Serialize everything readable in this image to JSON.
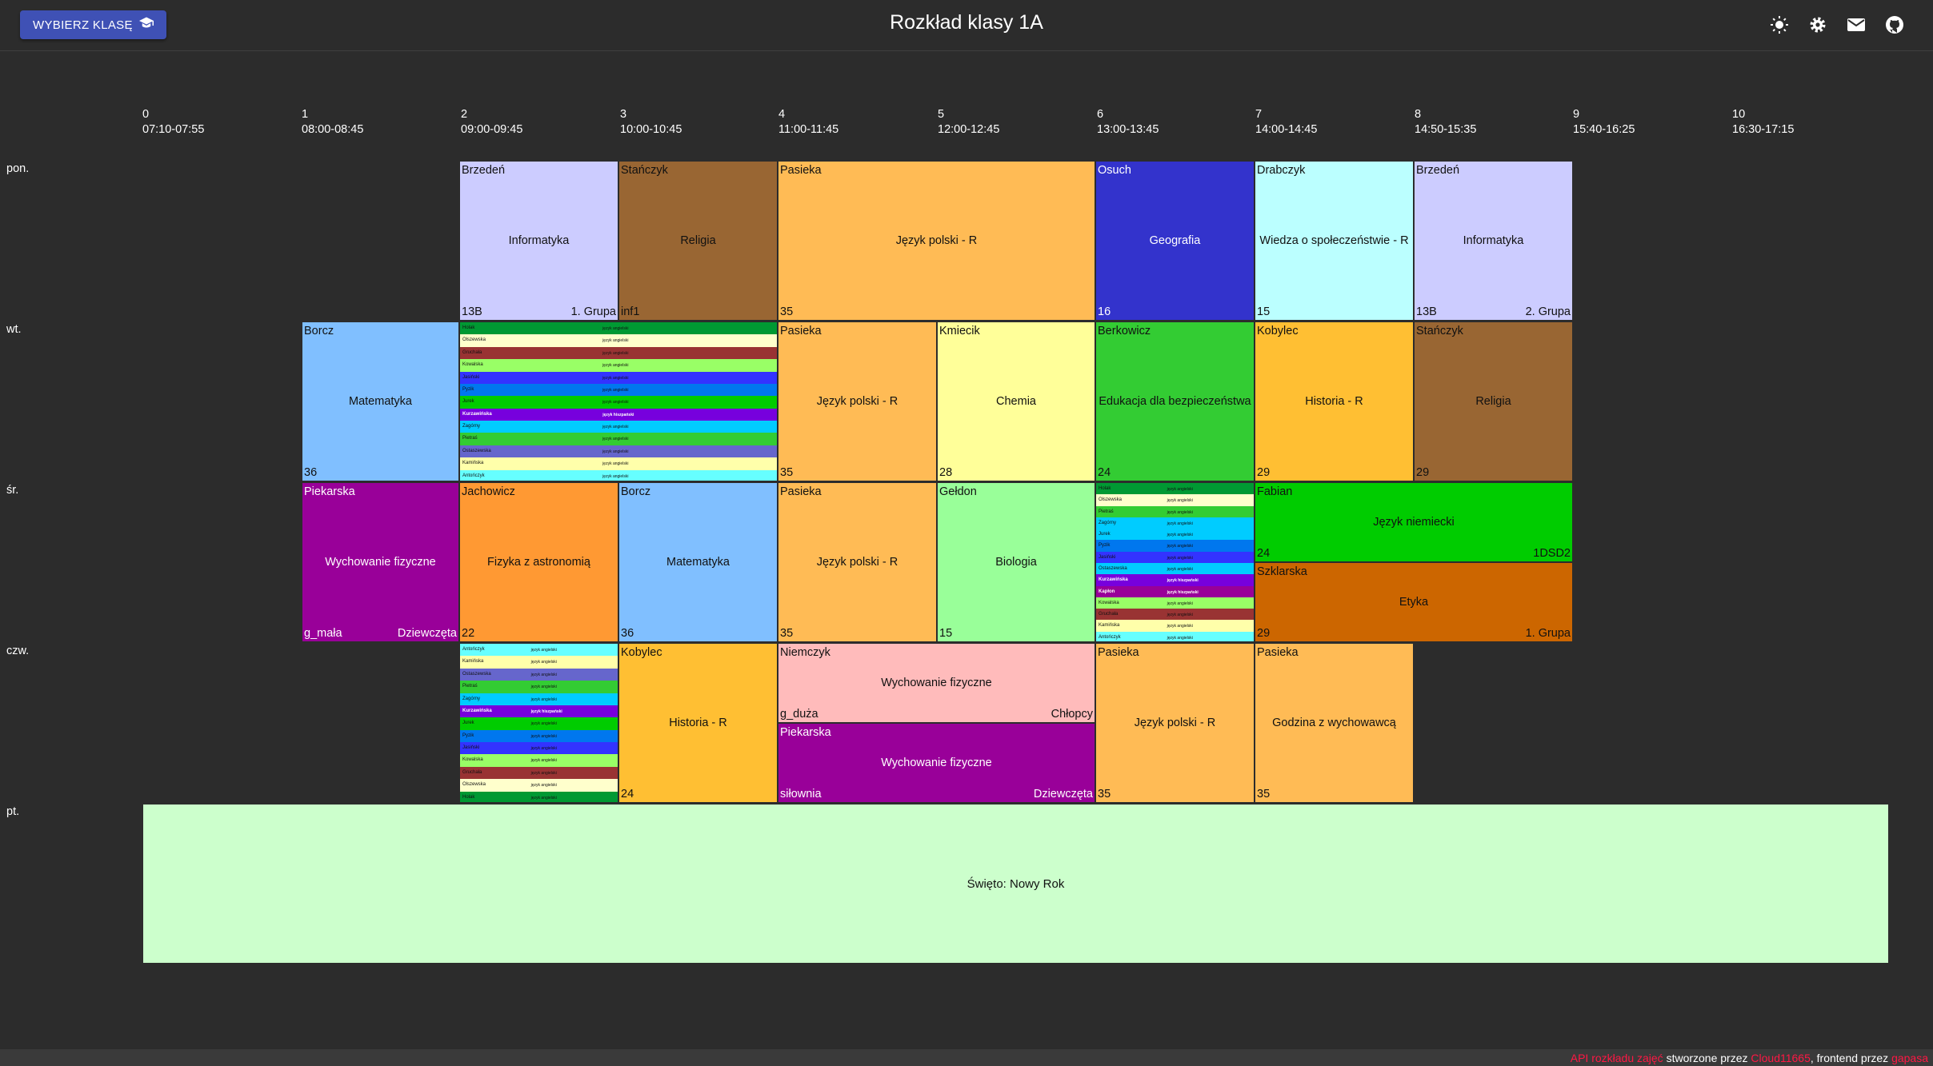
{
  "header": {
    "select_button": "WYBIERZ KLASĘ",
    "title": "Rozkład klasy 1A",
    "icons": [
      "brightness-icon",
      "settings-icon",
      "mail-icon",
      "github-icon"
    ]
  },
  "columns": [
    {
      "n": "0",
      "time": "07:10-07:55"
    },
    {
      "n": "1",
      "time": "08:00-08:45"
    },
    {
      "n": "2",
      "time": "09:00-09:45"
    },
    {
      "n": "3",
      "time": "10:00-10:45"
    },
    {
      "n": "4",
      "time": "11:00-11:45"
    },
    {
      "n": "5",
      "time": "12:00-12:45"
    },
    {
      "n": "6",
      "time": "13:00-13:45"
    },
    {
      "n": "7",
      "time": "14:00-14:45"
    },
    {
      "n": "8",
      "time": "14:50-15:35"
    },
    {
      "n": "9",
      "time": "15:40-16:25"
    },
    {
      "n": "10",
      "time": "16:30-17:15"
    }
  ],
  "days": [
    "pon.",
    "wt.",
    "śr.",
    "czw.",
    "pt."
  ],
  "lessons": {
    "mon": [
      {
        "teacher": "Brzedeń",
        "subject": "Informatyka",
        "room": "13B",
        "group": "1. Grupa",
        "color": "#ccccff"
      },
      {
        "teacher": "Stańczyk",
        "subject": "Religia",
        "room": "inf1",
        "group": "",
        "color": "#996633"
      },
      {
        "teacher": "Pasieka",
        "subject": "Język polski - R",
        "room": "35",
        "group": "",
        "color": "#ffbb55"
      },
      {
        "teacher": "Osuch",
        "subject": "Geografia",
        "room": "16",
        "group": "",
        "color": "#3333cc"
      },
      {
        "teacher": "Drabczyk",
        "subject": "Wiedza o społeczeństwie - R",
        "room": "15",
        "group": "",
        "color": "#bbffff"
      },
      {
        "teacher": "Brzedeń",
        "subject": "Informatyka",
        "room": "13B",
        "group": "2. Grupa",
        "color": "#ccccff"
      }
    ],
    "tue": [
      {
        "teacher": "Borcz",
        "subject": "Matematyka",
        "room": "36",
        "group": "",
        "color": "#80bfff"
      },
      {
        "teacher": "Pasieka",
        "subject": "Język polski - R",
        "room": "35",
        "group": "",
        "color": "#ffbb55"
      },
      {
        "teacher": "Kmiecik",
        "subject": "Chemia",
        "room": "28",
        "group": "",
        "color": "#ffff99"
      },
      {
        "teacher": "Berkowicz",
        "subject": "Edukacja dla bezpieczeństwa",
        "room": "24",
        "group": "",
        "color": "#33cc33"
      },
      {
        "teacher": "Kobylec",
        "subject": "Historia - R",
        "room": "29",
        "group": "",
        "color": "#ffbf33"
      },
      {
        "teacher": "Stańczyk",
        "subject": "Religia",
        "room": "29",
        "group": "",
        "color": "#996633"
      }
    ],
    "wed": [
      {
        "teacher": "Piekarska",
        "subject": "Wychowanie fizyczne",
        "room": "g_mała",
        "group": "Dziewczęta",
        "color": "#990099"
      },
      {
        "teacher": "Jachowicz",
        "subject": "Fizyka z astronomią",
        "room": "22",
        "group": "",
        "color": "#ff9933"
      },
      {
        "teacher": "Borcz",
        "subject": "Matematyka",
        "room": "36",
        "group": "",
        "color": "#80bfff"
      },
      {
        "teacher": "Pasieka",
        "subject": "Język polski - R",
        "room": "35",
        "group": "",
        "color": "#ffbb55"
      },
      {
        "teacher": "Gełdon",
        "subject": "Biologia",
        "room": "15",
        "group": "",
        "color": "#99ff99"
      },
      {
        "teacher": "Fabian",
        "subject": "Język niemiecki",
        "room": "24",
        "group": "1DSD2",
        "color": "#00cc00"
      },
      {
        "teacher": "Szklarska",
        "subject": "Etyka",
        "room": "29",
        "group": "1. Grupa",
        "color": "#cc6600"
      }
    ],
    "thu": [
      {
        "teacher": "Kobylec",
        "subject": "Historia - R",
        "room": "24",
        "group": "",
        "color": "#ffbf33"
      },
      {
        "teacher": "Niemczyk",
        "subject": "Wychowanie fizyczne",
        "room": "g_duża",
        "group": "Chłopcy",
        "color": "#ffbbbb"
      },
      {
        "teacher": "Piekarska",
        "subject": "Wychowanie fizyczne",
        "room": "siłownia",
        "group": "Dziewczęta",
        "color": "#990099"
      },
      {
        "teacher": "Pasieka",
        "subject": "Język polski - R",
        "room": "35",
        "group": "",
        "color": "#ffbb55"
      },
      {
        "teacher": "Pasieka",
        "subject": "Godzina z wychowawcą",
        "room": "35",
        "group": "",
        "color": "#ffbb55"
      }
    ],
    "fri_holiday": "Święto: Nowy Rok"
  },
  "language_strips": {
    "label": "język angielski",
    "label_highlight": "język hiszpański",
    "tue": [
      {
        "t": "Holak",
        "c": "#009933"
      },
      {
        "t": "Olszewska",
        "c": "#ffffcc"
      },
      {
        "t": "Gruchała",
        "c": "#993333"
      },
      {
        "t": "Kowalska",
        "c": "#99ff66"
      },
      {
        "t": "Jasiński",
        "c": "#3333ff"
      },
      {
        "t": "Pyzik",
        "c": "#0077ee"
      },
      {
        "t": "Jurek",
        "c": "#00cc00"
      },
      {
        "t": "Kurzawińska",
        "c": "#7700dd",
        "w": true
      },
      {
        "t": "Zagórny",
        "c": "#00ccff"
      },
      {
        "t": "Pietraś",
        "c": "#33cc33"
      },
      {
        "t": "Ostaszewska",
        "c": "#6666cc"
      },
      {
        "t": "Kamińska",
        "c": "#ffffaa"
      },
      {
        "t": "Antończyk",
        "c": "#66ffff"
      }
    ],
    "wed": [
      {
        "t": "Holak",
        "c": "#009933"
      },
      {
        "t": "Olszewska",
        "c": "#ffffcc"
      },
      {
        "t": "Pietraś",
        "c": "#33cc33"
      },
      {
        "t": "Zagórny",
        "c": "#00ccff"
      },
      {
        "t": "Jurek",
        "c": "#00ccff"
      },
      {
        "t": "Pyzik",
        "c": "#0077ee"
      },
      {
        "t": "Jasiński",
        "c": "#3333ff"
      },
      {
        "t": "Ostaszewska",
        "c": "#00ccff"
      },
      {
        "t": "Kurzawińska",
        "c": "#7700dd",
        "w": true
      },
      {
        "t": "Kapłon",
        "c": "#990099",
        "w": true
      },
      {
        "t": "Kowalska",
        "c": "#99ff66"
      },
      {
        "t": "Gruchała",
        "c": "#993333"
      },
      {
        "t": "Kamińska",
        "c": "#ffffaa"
      },
      {
        "t": "Antończyk",
        "c": "#66ffff"
      }
    ],
    "thu": [
      {
        "t": "Antończyk",
        "c": "#66ffff"
      },
      {
        "t": "Kamińska",
        "c": "#ffffaa"
      },
      {
        "t": "Ostaszewska",
        "c": "#6666cc"
      },
      {
        "t": "Pietraś",
        "c": "#33cc33"
      },
      {
        "t": "Zagórny",
        "c": "#00ccff"
      },
      {
        "t": "Kurzawińska",
        "c": "#7700dd",
        "w": true
      },
      {
        "t": "Jurek",
        "c": "#00cc00"
      },
      {
        "t": "Pyzik",
        "c": "#0077ee"
      },
      {
        "t": "Jasiński",
        "c": "#3333ff"
      },
      {
        "t": "Kowalska",
        "c": "#99ff66"
      },
      {
        "t": "Gruchała",
        "c": "#993333"
      },
      {
        "t": "Olszewska",
        "c": "#ffffcc"
      },
      {
        "t": "Holak",
        "c": "#009933"
      }
    ]
  },
  "footer": {
    "api_link": "API rozkładu zajęć",
    "created_by": " stworzone przez ",
    "api_author": "Cloud11665",
    "frontend_by": ", frontend przez ",
    "frontend_author": "gapasa"
  }
}
